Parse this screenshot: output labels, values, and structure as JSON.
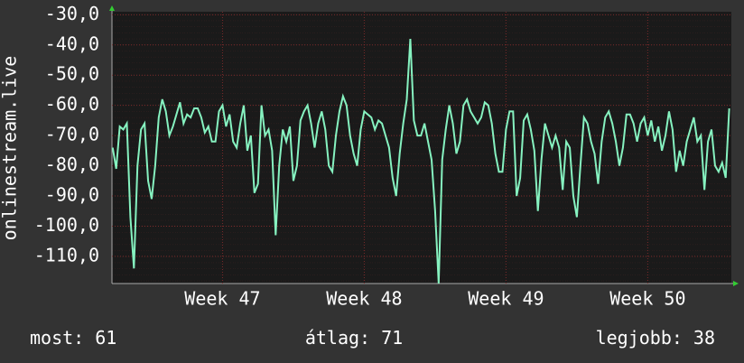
{
  "chart_data": {
    "type": "line",
    "y_label": "onlinestream.live",
    "x": [
      46.225,
      46.25,
      46.275,
      46.3,
      46.325,
      46.35,
      46.375,
      46.4,
      46.425,
      46.45,
      46.475,
      46.5,
      46.525,
      46.55,
      46.575,
      46.6,
      46.625,
      46.65,
      46.675,
      46.7,
      46.725,
      46.75,
      46.775,
      46.8,
      46.825,
      46.85,
      46.875,
      46.9,
      46.925,
      46.95,
      46.975,
      47,
      47.025,
      47.05,
      47.075,
      47.1,
      47.125,
      47.15,
      47.175,
      47.2,
      47.225,
      47.25,
      47.275,
      47.3,
      47.325,
      47.35,
      47.375,
      47.4,
      47.425,
      47.45,
      47.475,
      47.5,
      47.525,
      47.55,
      47.575,
      47.6,
      47.625,
      47.65,
      47.675,
      47.7,
      47.725,
      47.75,
      47.775,
      47.8,
      47.825,
      47.85,
      47.875,
      47.9,
      47.925,
      47.95,
      47.975,
      48,
      48.025,
      48.05,
      48.075,
      48.1,
      48.125,
      48.15,
      48.175,
      48.2,
      48.225,
      48.25,
      48.275,
      48.3,
      48.325,
      48.35,
      48.375,
      48.4,
      48.425,
      48.45,
      48.475,
      48.5,
      48.525,
      48.55,
      48.575,
      48.6,
      48.625,
      48.65,
      48.675,
      48.7,
      48.725,
      48.75,
      48.775,
      48.8,
      48.825,
      48.85,
      48.875,
      48.9,
      48.925,
      48.95,
      48.975,
      49,
      49.025,
      49.05,
      49.075,
      49.1,
      49.125,
      49.15,
      49.175,
      49.2,
      49.225,
      49.25,
      49.275,
      49.3,
      49.325,
      49.35,
      49.375,
      49.4,
      49.425,
      49.45,
      49.475,
      49.5,
      49.525,
      49.55,
      49.575,
      49.6,
      49.625,
      49.65,
      49.675,
      49.7,
      49.725,
      49.75,
      49.775,
      49.8,
      49.825,
      49.85,
      49.875,
      49.9,
      49.925,
      49.95,
      49.975,
      50,
      50.025,
      50.05,
      50.075,
      50.1,
      50.125,
      50.15,
      50.175,
      50.2,
      50.225,
      50.25,
      50.275,
      50.3,
      50.325,
      50.35,
      50.375,
      50.4,
      50.425,
      50.45,
      50.475,
      50.5,
      50.525,
      50.55,
      50.575
    ],
    "series": [
      {
        "color": "#86f2c0",
        "values": [
          -74,
          -81,
          -67,
          -68,
          -66,
          -97,
          -114,
          -80,
          -68,
          -66,
          -85,
          -91,
          -80,
          -64,
          -58,
          -62,
          -70,
          -67,
          -63,
          -59,
          -66,
          -63,
          -64,
          -61,
          -61,
          -64,
          -69,
          -67,
          -72,
          -72,
          -62,
          -60,
          -67,
          -63,
          -72,
          -74,
          -66,
          -60,
          -75,
          -70,
          -89,
          -86,
          -60,
          -70,
          -68,
          -75,
          -103,
          -80,
          -68,
          -72,
          -67,
          -85,
          -80,
          -65,
          -62,
          -60,
          -66,
          -74,
          -66,
          -62,
          -68,
          -80,
          -82,
          -70,
          -62,
          -57,
          -60,
          -70,
          -76,
          -80,
          -68,
          -62,
          -63,
          -64,
          -68,
          -65,
          -66,
          -70,
          -74,
          -84,
          -90,
          -76,
          -66,
          -58,
          -38,
          -65,
          -70,
          -70,
          -66,
          -72,
          -78,
          -95,
          -119,
          -78,
          -68,
          -60,
          -66,
          -76,
          -72,
          -60,
          -58,
          -62,
          -64,
          -66,
          -64,
          -59,
          -60,
          -66,
          -76,
          -82,
          -82,
          -68,
          -62,
          -62,
          -90,
          -84,
          -65,
          -63,
          -68,
          -75,
          -95,
          -78,
          -66,
          -70,
          -74,
          -70,
          -74,
          -88,
          -72,
          -74,
          -90,
          -97,
          -80,
          -64,
          -66,
          -72,
          -76,
          -86,
          -72,
          -64,
          -62,
          -66,
          -72,
          -80,
          -74,
          -63,
          -63,
          -66,
          -72,
          -66,
          -64,
          -70,
          -65,
          -72,
          -67,
          -75,
          -70,
          -62,
          -68,
          -82,
          -75,
          -80,
          -72,
          -68,
          -64,
          -72,
          -70,
          -88,
          -72,
          -68,
          -80,
          -82,
          -79,
          -84,
          -61
        ]
      }
    ],
    "xlim": [
      46.22,
      50.59
    ],
    "xticks": [
      {
        "value": 47,
        "label": "Week 47"
      },
      {
        "value": 48,
        "label": "Week 48"
      },
      {
        "value": 49,
        "label": "Week 49"
      },
      {
        "value": 50,
        "label": "Week 50"
      }
    ],
    "ylim": [
      -119,
      -29
    ],
    "yticks": [
      {
        "value": -30,
        "label": "-30,0"
      },
      {
        "value": -40,
        "label": "-40,0"
      },
      {
        "value": -50,
        "label": "-50,0"
      },
      {
        "value": -60,
        "label": "-60,0"
      },
      {
        "value": -70,
        "label": "-70,0"
      },
      {
        "value": -80,
        "label": "-80,0"
      },
      {
        "value": -90,
        "label": "-90,0"
      },
      {
        "value": -100,
        "label": "-100,0"
      },
      {
        "value": -110,
        "label": "-110,0"
      }
    ],
    "grid": true,
    "legend": [
      {
        "label": "most:",
        "value": 61
      },
      {
        "label": "átlag:",
        "value": 71
      },
      {
        "label": "legjobb:",
        "value": 38
      }
    ]
  }
}
